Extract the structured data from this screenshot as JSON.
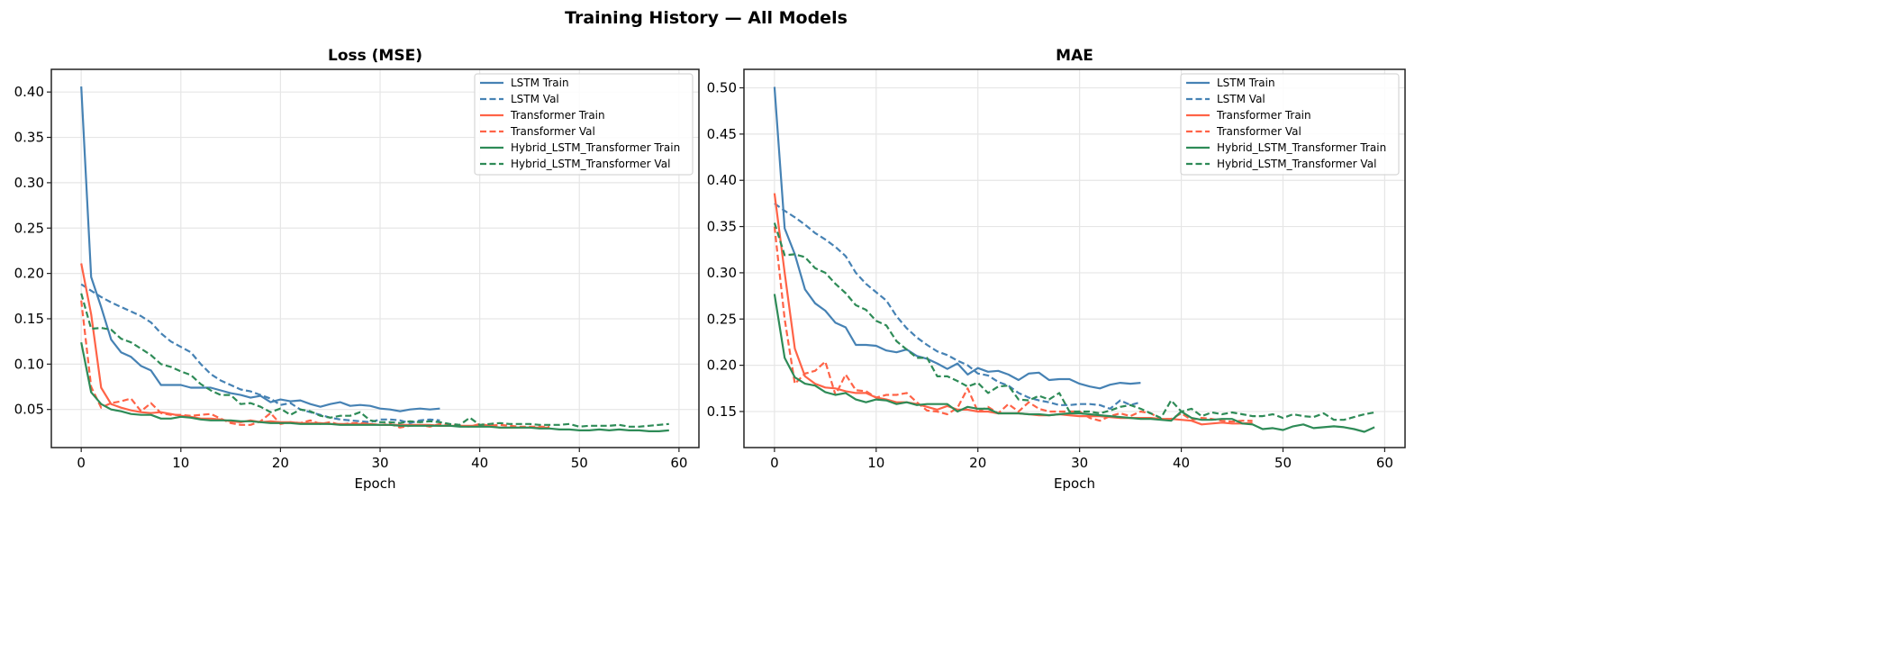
{
  "figure_title": "Training History — All Models",
  "colors": {
    "LSTM": "#4682b4",
    "Transformer": "#ff6347",
    "Hybrid_LSTM_Transformer": "#2e8b57"
  },
  "chart_data": [
    {
      "type": "line",
      "title": "Loss (MSE)",
      "xlabel": "Epoch",
      "ylabel": "",
      "xlim": [
        -3,
        62
      ],
      "ylim": [
        0.008,
        0.425
      ],
      "xticks": [
        0,
        10,
        20,
        30,
        40,
        50,
        60
      ],
      "yticks": [
        0.05,
        0.1,
        0.15,
        0.2,
        0.25,
        0.3,
        0.35,
        0.4
      ],
      "ytick_labels": [
        "0.05",
        "0.10",
        "0.15",
        "0.20",
        "0.25",
        "0.30",
        "0.35",
        "0.40"
      ],
      "grid": true,
      "legend_position": "top-right",
      "series": [
        {
          "name": "LSTM Train",
          "color": "#4682b4",
          "style": "solid",
          "values": [
            0.406,
            0.196,
            0.163,
            0.127,
            0.113,
            0.108,
            0.098,
            0.093,
            0.077,
            0.077,
            0.077,
            0.074,
            0.074,
            0.074,
            0.071,
            0.068,
            0.066,
            0.063,
            0.065,
            0.058,
            0.061,
            0.059,
            0.06,
            0.056,
            0.053,
            0.056,
            0.058,
            0.054,
            0.055,
            0.054,
            0.051,
            0.05,
            0.048,
            0.05,
            0.051,
            0.05,
            0.051
          ]
        },
        {
          "name": "LSTM Val",
          "color": "#4682b4",
          "style": "dashed",
          "values": [
            0.188,
            0.181,
            0.174,
            0.168,
            0.163,
            0.158,
            0.153,
            0.146,
            0.134,
            0.125,
            0.119,
            0.113,
            0.1,
            0.089,
            0.082,
            0.077,
            0.072,
            0.07,
            0.066,
            0.062,
            0.055,
            0.057,
            0.05,
            0.047,
            0.044,
            0.041,
            0.039,
            0.038,
            0.037,
            0.036,
            0.039,
            0.039,
            0.038,
            0.035,
            0.038,
            0.039,
            0.038
          ]
        },
        {
          "name": "Transformer Train",
          "color": "#ff6347",
          "style": "solid",
          "values": [
            0.211,
            0.155,
            0.074,
            0.056,
            0.052,
            0.049,
            0.047,
            0.046,
            0.047,
            0.045,
            0.043,
            0.042,
            0.04,
            0.04,
            0.039,
            0.037,
            0.036,
            0.038,
            0.036,
            0.037,
            0.036,
            0.036,
            0.035,
            0.035,
            0.035,
            0.034,
            0.034,
            0.034,
            0.034,
            0.034,
            0.033,
            0.033,
            0.033,
            0.033,
            0.033,
            0.033,
            0.032,
            0.032,
            0.032,
            0.032,
            0.032,
            0.032,
            0.03,
            0.03,
            0.03,
            0.03,
            0.03,
            0.03
          ]
        },
        {
          "name": "Transformer Val",
          "color": "#ff6347",
          "style": "dashed",
          "values": [
            0.17,
            0.075,
            0.052,
            0.057,
            0.059,
            0.062,
            0.048,
            0.057,
            0.046,
            0.044,
            0.044,
            0.043,
            0.044,
            0.045,
            0.04,
            0.035,
            0.033,
            0.033,
            0.037,
            0.046,
            0.034,
            0.036,
            0.035,
            0.038,
            0.034,
            0.036,
            0.033,
            0.035,
            0.035,
            0.034,
            0.033,
            0.034,
            0.03,
            0.032,
            0.033,
            0.031,
            0.034,
            0.033,
            0.032,
            0.031,
            0.034,
            0.032,
            0.033,
            0.032,
            0.031,
            0.031,
            0.031,
            0.031
          ]
        },
        {
          "name": "Hybrid_LSTM_Transformer Train",
          "color": "#2e8b57",
          "style": "solid",
          "values": [
            0.124,
            0.069,
            0.056,
            0.05,
            0.048,
            0.045,
            0.044,
            0.044,
            0.04,
            0.04,
            0.042,
            0.041,
            0.039,
            0.038,
            0.038,
            0.038,
            0.037,
            0.037,
            0.036,
            0.035,
            0.035,
            0.035,
            0.034,
            0.034,
            0.034,
            0.034,
            0.033,
            0.033,
            0.033,
            0.033,
            0.033,
            0.033,
            0.032,
            0.032,
            0.032,
            0.032,
            0.032,
            0.032,
            0.031,
            0.031,
            0.031,
            0.031,
            0.03,
            0.03,
            0.03,
            0.03,
            0.029,
            0.029,
            0.028,
            0.028,
            0.027,
            0.027,
            0.028,
            0.027,
            0.028,
            0.027,
            0.027,
            0.026,
            0.026,
            0.027
          ]
        },
        {
          "name": "Hybrid_LSTM_Transformer Val",
          "color": "#2e8b57",
          "style": "dashed",
          "values": [
            0.178,
            0.139,
            0.14,
            0.138,
            0.128,
            0.124,
            0.117,
            0.11,
            0.1,
            0.097,
            0.092,
            0.088,
            0.078,
            0.071,
            0.066,
            0.066,
            0.056,
            0.057,
            0.053,
            0.047,
            0.051,
            0.044,
            0.05,
            0.048,
            0.043,
            0.041,
            0.043,
            0.043,
            0.047,
            0.038,
            0.036,
            0.036,
            0.035,
            0.037,
            0.036,
            0.037,
            0.036,
            0.034,
            0.033,
            0.041,
            0.033,
            0.034,
            0.035,
            0.034,
            0.034,
            0.034,
            0.033,
            0.033,
            0.033,
            0.034,
            0.031,
            0.032,
            0.032,
            0.032,
            0.033,
            0.031,
            0.031,
            0.032,
            0.033,
            0.034
          ]
        }
      ]
    },
    {
      "type": "line",
      "title": "MAE",
      "xlabel": "Epoch",
      "ylabel": "",
      "xlim": [
        -3,
        62
      ],
      "ylim": [
        0.111,
        0.52
      ],
      "xticks": [
        0,
        10,
        20,
        30,
        40,
        50,
        60
      ],
      "yticks": [
        0.15,
        0.2,
        0.25,
        0.3,
        0.35,
        0.4,
        0.45,
        0.5
      ],
      "ytick_labels": [
        "0.15",
        "0.20",
        "0.25",
        "0.30",
        "0.35",
        "0.40",
        "0.45",
        "0.50"
      ],
      "grid": true,
      "legend_position": "top-right",
      "series": [
        {
          "name": "LSTM Train",
          "color": "#4682b4",
          "style": "solid",
          "values": [
            0.501,
            0.348,
            0.32,
            0.282,
            0.267,
            0.259,
            0.246,
            0.241,
            0.222,
            0.222,
            0.221,
            0.216,
            0.214,
            0.217,
            0.21,
            0.207,
            0.202,
            0.196,
            0.202,
            0.19,
            0.197,
            0.193,
            0.194,
            0.19,
            0.184,
            0.191,
            0.192,
            0.184,
            0.185,
            0.185,
            0.18,
            0.177,
            0.175,
            0.179,
            0.181,
            0.18,
            0.181
          ]
        },
        {
          "name": "LSTM Val",
          "color": "#4682b4",
          "style": "dashed",
          "values": [
            0.375,
            0.367,
            0.36,
            0.352,
            0.343,
            0.336,
            0.328,
            0.318,
            0.3,
            0.288,
            0.279,
            0.27,
            0.253,
            0.24,
            0.23,
            0.222,
            0.215,
            0.211,
            0.205,
            0.2,
            0.191,
            0.189,
            0.182,
            0.178,
            0.17,
            0.165,
            0.162,
            0.16,
            0.157,
            0.157,
            0.158,
            0.158,
            0.157,
            0.153,
            0.162,
            0.157,
            0.16
          ]
        },
        {
          "name": "Transformer Train",
          "color": "#ff6347",
          "style": "solid",
          "values": [
            0.386,
            0.3,
            0.218,
            0.188,
            0.18,
            0.176,
            0.175,
            0.172,
            0.17,
            0.17,
            0.165,
            0.163,
            0.16,
            0.16,
            0.158,
            0.155,
            0.152,
            0.156,
            0.152,
            0.152,
            0.15,
            0.15,
            0.148,
            0.148,
            0.148,
            0.147,
            0.146,
            0.146,
            0.147,
            0.146,
            0.145,
            0.145,
            0.145,
            0.144,
            0.143,
            0.143,
            0.143,
            0.143,
            0.142,
            0.142,
            0.141,
            0.14,
            0.136,
            0.137,
            0.138,
            0.137,
            0.137,
            0.138
          ]
        },
        {
          "name": "Transformer Val",
          "color": "#ff6347",
          "style": "dashed",
          "values": [
            0.35,
            0.25,
            0.18,
            0.191,
            0.194,
            0.204,
            0.168,
            0.19,
            0.173,
            0.172,
            0.165,
            0.168,
            0.168,
            0.17,
            0.16,
            0.151,
            0.15,
            0.147,
            0.154,
            0.175,
            0.15,
            0.155,
            0.148,
            0.158,
            0.15,
            0.16,
            0.153,
            0.15,
            0.15,
            0.15,
            0.15,
            0.143,
            0.14,
            0.145,
            0.148,
            0.145,
            0.15,
            0.148,
            0.142,
            0.142,
            0.148,
            0.141,
            0.143,
            0.142,
            0.14,
            0.139,
            0.14,
            0.14
          ]
        },
        {
          "name": "Hybrid_LSTM_Transformer Train",
          "color": "#2e8b57",
          "style": "solid",
          "values": [
            0.277,
            0.208,
            0.187,
            0.18,
            0.178,
            0.171,
            0.168,
            0.17,
            0.163,
            0.16,
            0.163,
            0.162,
            0.158,
            0.16,
            0.157,
            0.158,
            0.158,
            0.158,
            0.15,
            0.155,
            0.153,
            0.153,
            0.148,
            0.148,
            0.148,
            0.147,
            0.147,
            0.146,
            0.147,
            0.148,
            0.148,
            0.147,
            0.146,
            0.145,
            0.144,
            0.143,
            0.142,
            0.142,
            0.141,
            0.14,
            0.15,
            0.143,
            0.141,
            0.141,
            0.142,
            0.142,
            0.137,
            0.136,
            0.131,
            0.132,
            0.13,
            0.134,
            0.136,
            0.132,
            0.133,
            0.134,
            0.133,
            0.131,
            0.128,
            0.133
          ]
        },
        {
          "name": "Hybrid_LSTM_Transformer Val",
          "color": "#2e8b57",
          "style": "dashed",
          "values": [
            0.354,
            0.319,
            0.32,
            0.317,
            0.305,
            0.3,
            0.288,
            0.278,
            0.265,
            0.26,
            0.248,
            0.243,
            0.226,
            0.217,
            0.208,
            0.208,
            0.188,
            0.188,
            0.183,
            0.177,
            0.181,
            0.17,
            0.177,
            0.178,
            0.163,
            0.162,
            0.167,
            0.163,
            0.17,
            0.15,
            0.15,
            0.15,
            0.148,
            0.151,
            0.155,
            0.157,
            0.153,
            0.148,
            0.143,
            0.162,
            0.15,
            0.153,
            0.145,
            0.149,
            0.147,
            0.149,
            0.147,
            0.145,
            0.145,
            0.147,
            0.143,
            0.147,
            0.145,
            0.144,
            0.148,
            0.141,
            0.141,
            0.144,
            0.147,
            0.149
          ]
        }
      ]
    }
  ]
}
